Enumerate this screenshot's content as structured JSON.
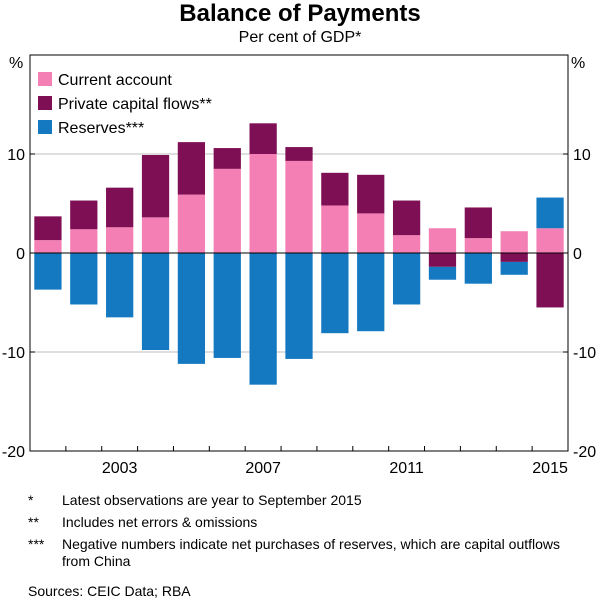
{
  "title": "Balance of Payments",
  "subtitle": "Per cent of GDP*",
  "chart_data": {
    "type": "bar",
    "stacked": true,
    "title": "Balance of Payments",
    "subtitle": "Per cent of GDP*",
    "ylabel_left": "%",
    "ylabel_right": "%",
    "ylim": [
      -20,
      20
    ],
    "yticks": [
      -20,
      -10,
      0,
      10
    ],
    "grid": true,
    "legend_position": "top-left",
    "x": [
      2001,
      2002,
      2003,
      2004,
      2005,
      2006,
      2007,
      2008,
      2009,
      2010,
      2011,
      2012,
      2013,
      2014,
      2015
    ],
    "xticks": [
      "2003",
      "2007",
      "2011",
      "2015"
    ],
    "series": [
      {
        "name": "Current account",
        "color": "#f47fb5",
        "values": [
          1.3,
          2.4,
          2.6,
          3.6,
          5.9,
          8.5,
          10.0,
          9.3,
          4.8,
          4.0,
          1.8,
          2.5,
          1.5,
          2.2,
          2.5
        ]
      },
      {
        "name": "Private capital flows**",
        "color": "#7f0f55",
        "values": [
          2.4,
          2.9,
          4.0,
          6.3,
          5.3,
          2.1,
          3.1,
          1.4,
          3.3,
          3.9,
          3.5,
          -1.4,
          3.1,
          -0.9,
          -5.5
        ]
      },
      {
        "name": "Reserves***",
        "color": "#1479c1",
        "values": [
          -3.7,
          -5.2,
          -6.5,
          -9.8,
          -11.2,
          -10.6,
          -13.3,
          -10.7,
          -8.1,
          -7.9,
          -5.2,
          -1.3,
          -3.1,
          -1.3,
          3.1
        ]
      }
    ]
  },
  "notes": [
    {
      "mark": "*",
      "text": "Latest observations are year to September 2015"
    },
    {
      "mark": "**",
      "text": "Includes net errors & omissions"
    },
    {
      "mark": "***",
      "text": "Negative numbers indicate net purchases of reserves, which are capital outflows from China"
    }
  ],
  "source": "Sources:   CEIC Data; RBA"
}
